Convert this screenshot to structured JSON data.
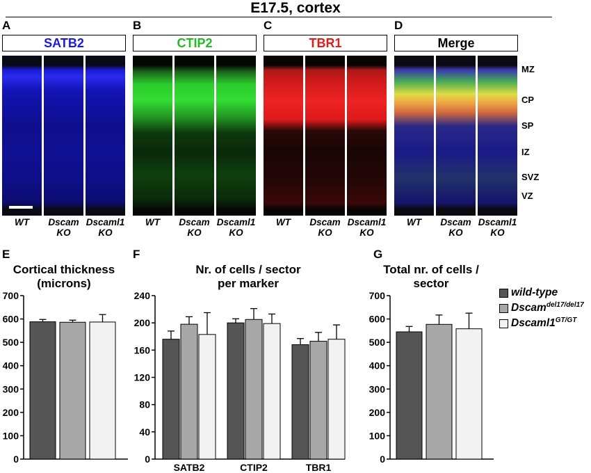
{
  "figure": {
    "title": "E17.5, cortex",
    "panels": {
      "A": {
        "letter": "A",
        "header": "SATB2",
        "color": "#1a1ae6"
      },
      "B": {
        "letter": "B",
        "header": "CTIP2",
        "color": "#22bb22"
      },
      "C": {
        "letter": "C",
        "header": "TBR1",
        "color": "#e61a1a"
      },
      "D": {
        "letter": "D",
        "header": "Merge",
        "color": "#000000"
      }
    },
    "genotypes": [
      {
        "line1": "WT",
        "line2": ""
      },
      {
        "line1": "Dscam",
        "line2": "KO"
      },
      {
        "line1": "Dscaml1",
        "line2": "KO"
      }
    ],
    "zones": [
      "MZ",
      "CP",
      "SP",
      "IZ",
      "SVZ",
      "VZ"
    ],
    "legend": [
      {
        "label": "wild-type",
        "sup": "",
        "color": "#555555"
      },
      {
        "label": "Dscam",
        "sup": "del17/del17",
        "color": "#a8a8a8"
      },
      {
        "label": "Dscaml1",
        "sup": "GT/GT",
        "color": "#f2f2f2"
      }
    ]
  },
  "chart_data": [
    {
      "letter": "E",
      "type": "bar",
      "title_lines": [
        "Cortical thickness",
        "(microns)"
      ],
      "categories": [
        ""
      ],
      "series": [
        {
          "name": "wild-type",
          "values": [
            588
          ],
          "errors": [
            10
          ],
          "color": "#555555"
        },
        {
          "name": "Dscam del17/del17",
          "values": [
            586
          ],
          "errors": [
            9
          ],
          "color": "#a8a8a8"
        },
        {
          "name": "Dscaml1 GT/GT",
          "values": [
            587
          ],
          "errors": [
            32
          ],
          "color": "#f2f2f2"
        }
      ],
      "ylim": [
        0,
        700
      ],
      "yticks": [
        0,
        100,
        200,
        300,
        400,
        500,
        600,
        700
      ]
    },
    {
      "letter": "F",
      "type": "bar",
      "title_lines": [
        "Nr. of cells / sector",
        "per marker"
      ],
      "categories": [
        "SATB2",
        "CTIP2",
        "TBR1"
      ],
      "series": [
        {
          "name": "wild-type",
          "values": [
            176,
            200,
            168
          ],
          "errors": [
            12,
            6,
            9
          ],
          "color": "#555555"
        },
        {
          "name": "Dscam del17/del17",
          "values": [
            198,
            205,
            173
          ],
          "errors": [
            11,
            16,
            13
          ],
          "color": "#a8a8a8"
        },
        {
          "name": "Dscaml1 GT/GT",
          "values": [
            183,
            199,
            176
          ],
          "errors": [
            32,
            14,
            21
          ],
          "color": "#f2f2f2"
        }
      ],
      "ylim": [
        0,
        240
      ],
      "yticks": [
        0,
        40,
        80,
        120,
        160,
        200,
        240
      ]
    },
    {
      "letter": "G",
      "type": "bar",
      "title_lines": [
        "Total nr. of cells /",
        "sector"
      ],
      "categories": [
        ""
      ],
      "series": [
        {
          "name": "wild-type",
          "values": [
            545
          ],
          "errors": [
            23
          ],
          "color": "#555555"
        },
        {
          "name": "Dscam del17/del17",
          "values": [
            577
          ],
          "errors": [
            40
          ],
          "color": "#a8a8a8"
        },
        {
          "name": "Dscaml1 GT/GT",
          "values": [
            558
          ],
          "errors": [
            67
          ],
          "color": "#f2f2f2"
        }
      ],
      "ylim": [
        0,
        700
      ],
      "yticks": [
        0,
        100,
        200,
        300,
        400,
        500,
        600,
        700
      ]
    }
  ]
}
